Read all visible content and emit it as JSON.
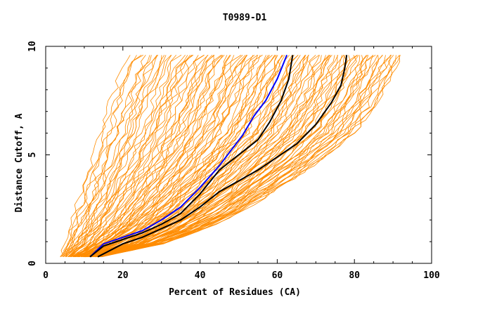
{
  "chart_data": {
    "type": "line",
    "title": "T0989-D1",
    "xlabel": "Percent of Residues (CA)",
    "ylabel": "Distance Cutoff, A",
    "xlim": [
      0,
      100
    ],
    "ylim": [
      0,
      10
    ],
    "x_ticks": [
      "0",
      "20",
      "40",
      "60",
      "80",
      "100"
    ],
    "y_ticks": [
      "0",
      "5",
      "10"
    ],
    "grid": false,
    "legend": "none",
    "colors": {
      "background_models": "#ff8c00",
      "highlight_blue": "#0000ff",
      "highlight_black": "#000000",
      "axes": "#000000"
    },
    "highlighted_series": [
      {
        "color": "#0000ff",
        "x": [
          11.5,
          15,
          20,
          25,
          30,
          35,
          40,
          45,
          48,
          51,
          54,
          57,
          60,
          62.5
        ],
        "y": [
          0.3,
          0.9,
          1.2,
          1.5,
          2.0,
          2.6,
          3.5,
          4.5,
          5.2,
          5.9,
          6.8,
          7.5,
          8.5,
          9.6
        ]
      },
      {
        "color": "#000000",
        "x": [
          11.5,
          15,
          20,
          25,
          30,
          35,
          40,
          45,
          50,
          55,
          58,
          61,
          63,
          64
        ],
        "y": [
          0.3,
          0.8,
          1.1,
          1.4,
          1.8,
          2.3,
          3.2,
          4.3,
          5.0,
          5.7,
          6.5,
          7.5,
          8.5,
          9.6
        ]
      },
      {
        "color": "#000000",
        "x": [
          13.5,
          20,
          25,
          30,
          35,
          40,
          45,
          50,
          55,
          60,
          65,
          70,
          74,
          76.5,
          77.5,
          78
        ],
        "y": [
          0.3,
          0.9,
          1.2,
          1.6,
          2.0,
          2.6,
          3.3,
          3.8,
          4.3,
          4.9,
          5.5,
          6.4,
          7.4,
          8.2,
          9.0,
          9.6
        ]
      }
    ],
    "envelope": {
      "best_curve": {
        "x": [
          4,
          6,
          8,
          10,
          12,
          14,
          16,
          18,
          20,
          22
        ],
        "y": [
          0.3,
          1.5,
          2.7,
          3.9,
          5.0,
          6.1,
          7.2,
          8.3,
          9.2,
          9.6
        ]
      },
      "worst_curve": {
        "x": [
          14,
          20,
          30,
          40,
          50,
          60,
          70,
          80,
          86,
          90,
          92
        ],
        "y": [
          0.3,
          0.5,
          0.9,
          1.5,
          2.3,
          3.4,
          4.6,
          6.0,
          7.5,
          8.8,
          9.6
        ]
      }
    }
  }
}
